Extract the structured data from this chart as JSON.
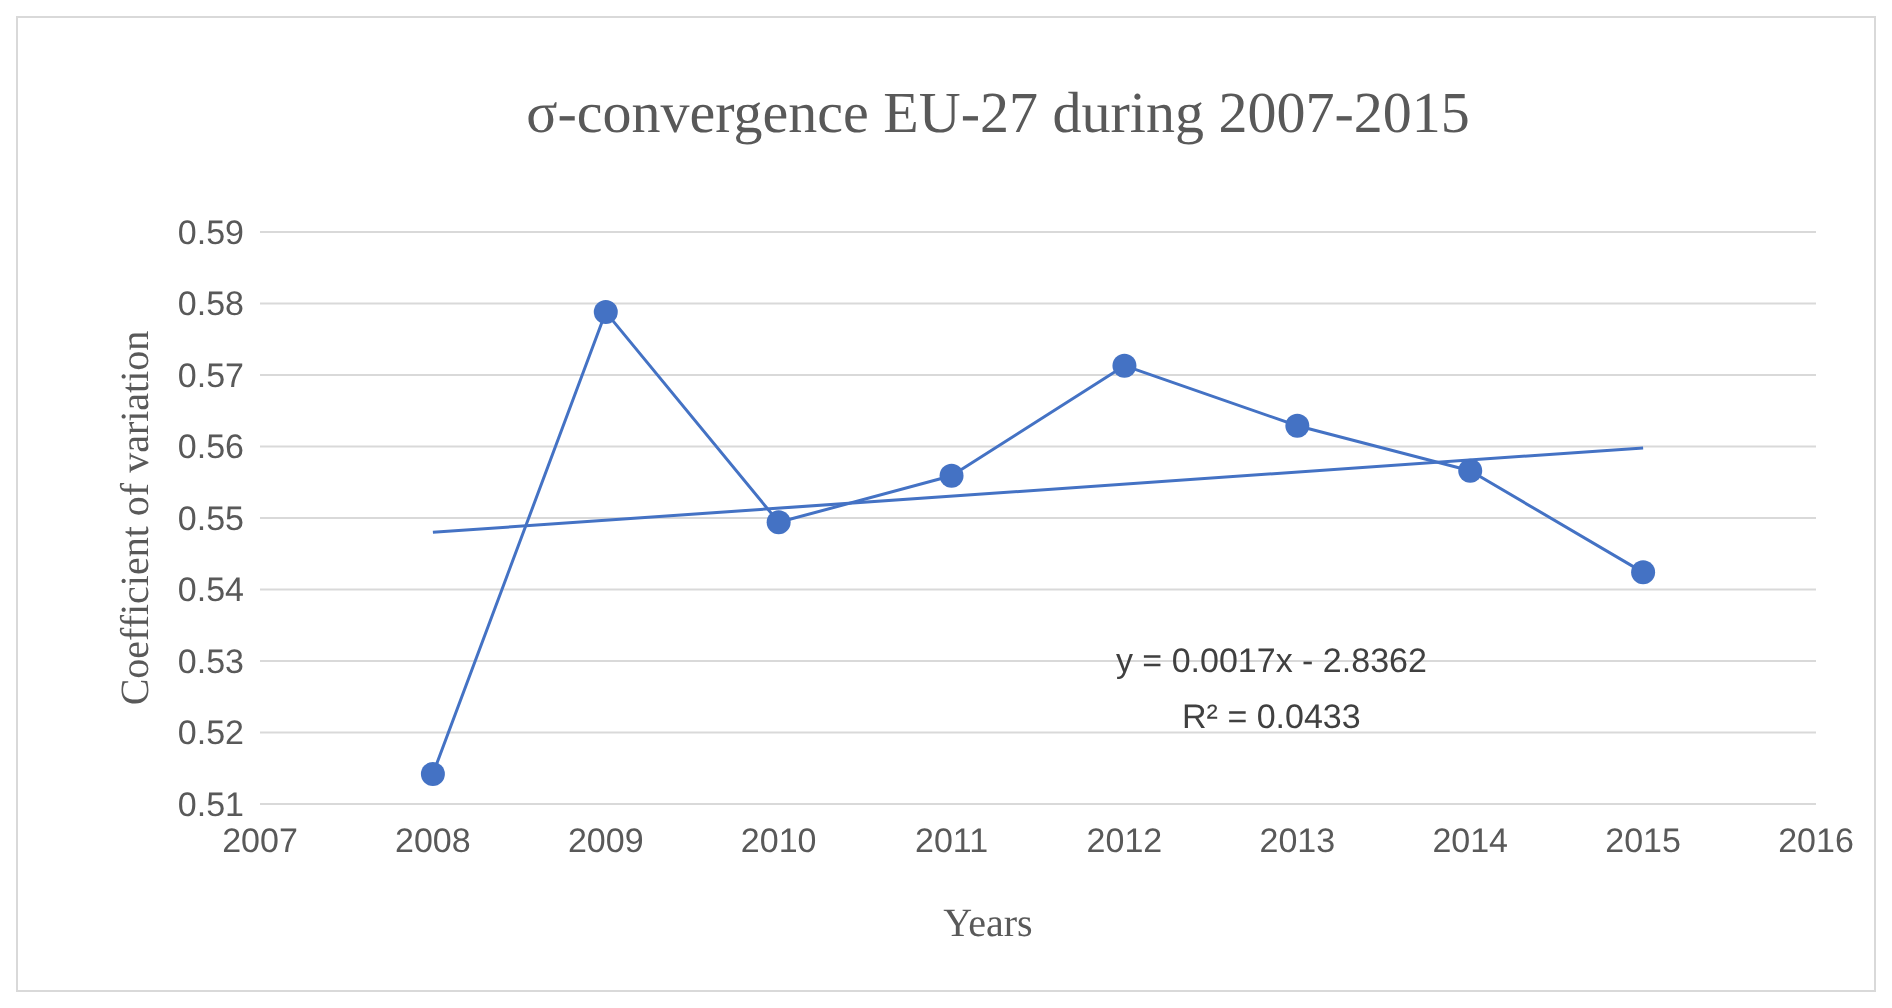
{
  "chart_data": {
    "type": "line",
    "title": "σ-convergence EU-27 during 2007-2015",
    "xlabel": "Years",
    "ylabel": "Coefficient of variation",
    "x": [
      2008,
      2009,
      2010,
      2011,
      2012,
      2013,
      2014,
      2015
    ],
    "series": [
      {
        "color": "#4472c4",
        "marker": "circle",
        "values": [
          0.5142,
          0.5788,
          0.5494,
          0.5559,
          0.5713,
          0.5629,
          0.5566,
          0.5424
        ]
      },
      {
        "color": "#4472c4",
        "marker": "none",
        "x": [
          2008,
          2015
        ],
        "values": [
          0.548,
          0.5598
        ]
      }
    ],
    "xlim": [
      2007,
      2016
    ],
    "xticks": [
      2007,
      2008,
      2009,
      2010,
      2011,
      2012,
      2013,
      2014,
      2015,
      2016
    ],
    "ylim": [
      0.51,
      0.59
    ],
    "yticks": [
      0.51,
      0.52,
      0.53,
      0.54,
      0.55,
      0.56,
      0.57,
      0.58,
      0.59
    ],
    "grid": "y",
    "annotations": [
      "y = 0.0017x - 2.8362",
      "R² = 0.0433"
    ]
  }
}
